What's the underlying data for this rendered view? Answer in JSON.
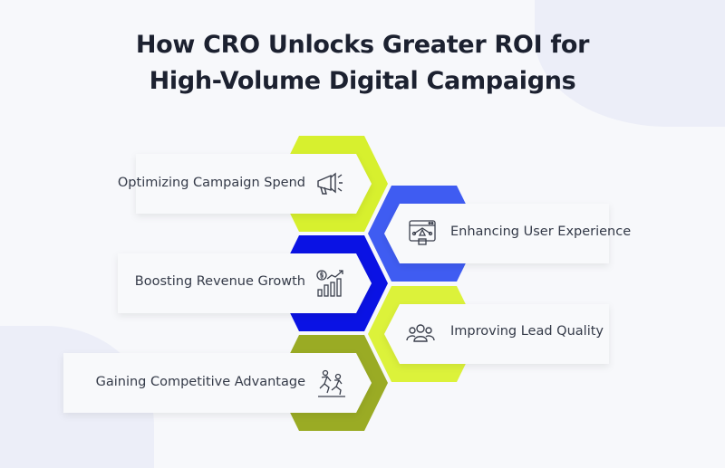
{
  "title_line1": "How CRO Unlocks Greater ROI for",
  "title_line2": "High-Volume Digital Campaigns",
  "items": [
    {
      "label": "Optimizing Campaign Spend",
      "icon": "megaphone-icon",
      "color": "#d7f02e"
    },
    {
      "label": "Enhancing User Experience",
      "icon": "web-design-icon",
      "color": "#3f5cf2"
    },
    {
      "label": "Boosting Revenue Growth",
      "icon": "revenue-chart-icon",
      "color": "#0a12e4"
    },
    {
      "label": "Improving Lead Quality",
      "icon": "people-group-icon",
      "color": "#dcf23a"
    },
    {
      "label": "Gaining Competitive Advantage",
      "icon": "runners-icon",
      "color": "#9aab24"
    }
  ]
}
